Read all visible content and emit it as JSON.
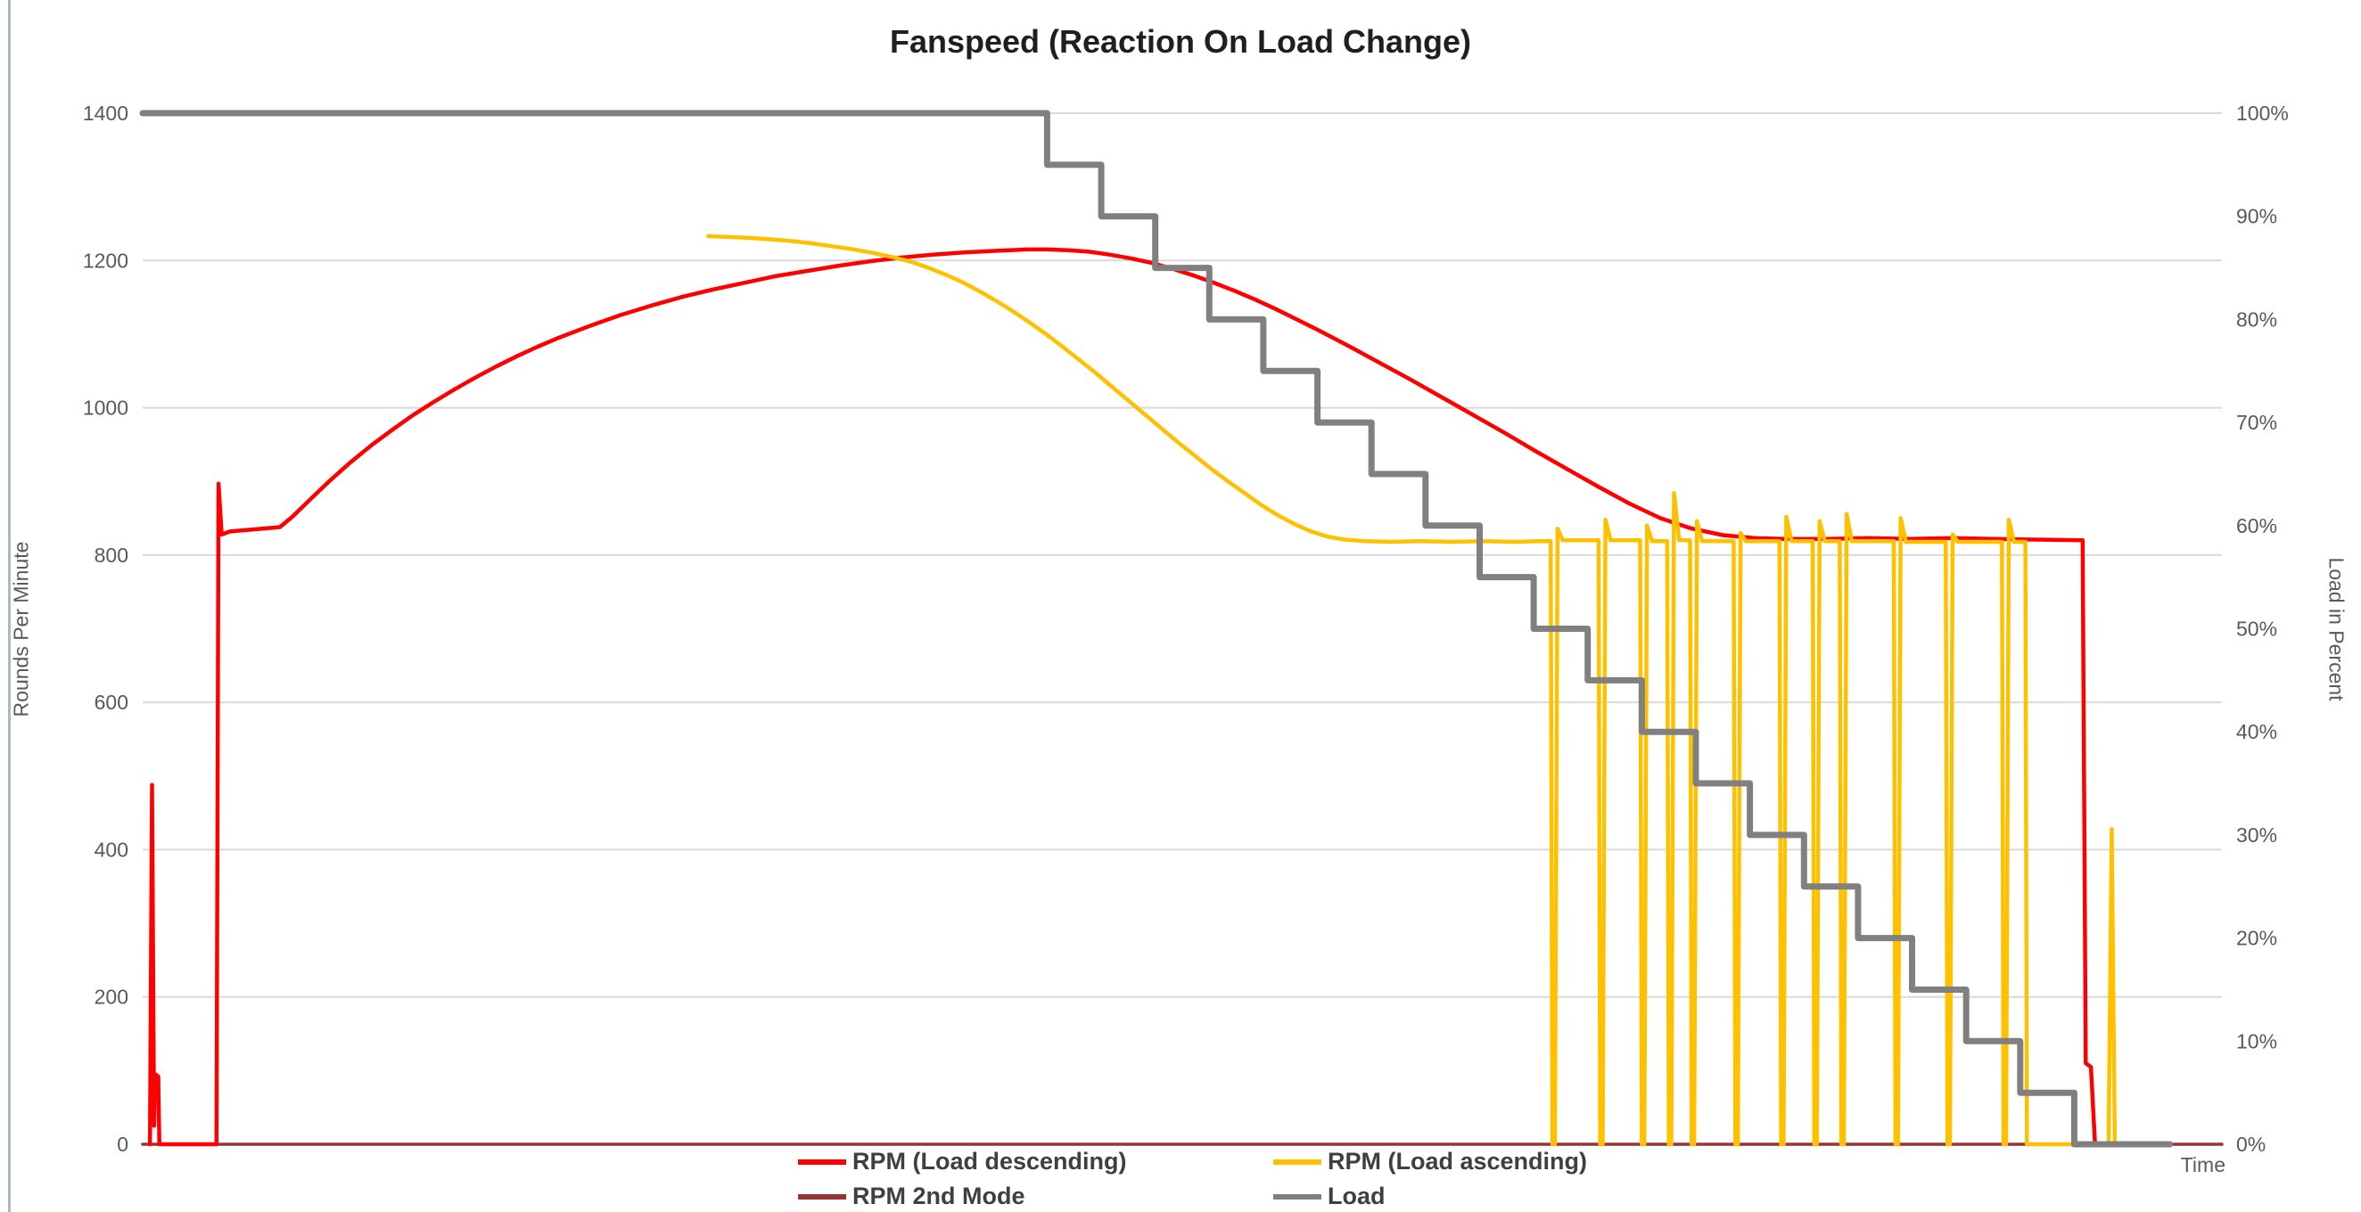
{
  "page": {
    "background": "#FFFFFF"
  },
  "chart_data": {
    "type": "line",
    "title": "Fanspeed (Reaction On Load Change)",
    "xlabel": "Time",
    "ylabel_left": "Rounds Per Minute",
    "ylabel_right": "Load in Percent",
    "ylim_left": [
      0,
      1400
    ],
    "ylim_right": [
      0,
      100
    ],
    "yticks_left": [
      0,
      200,
      400,
      600,
      800,
      1000,
      1200,
      1400
    ],
    "yticks_right_labels": [
      "0%",
      "10%",
      "20%",
      "30%",
      "40%",
      "50%",
      "60%",
      "70%",
      "80%",
      "90%",
      "100%"
    ],
    "grid": "horizontal",
    "grid_color": "#D9D9D9",
    "axis_text_color": "#595959",
    "title_color": "#1f1f1f",
    "legend_position": "bottom",
    "x_units": "percent_of_timeline (x axis shows no numeric ticks, only the label Time)",
    "series": [
      {
        "name": "rpm-2nd-mode",
        "axis": "left",
        "color": "#963634",
        "width": 3.5,
        "points": [
          [
            0,
            0
          ],
          [
            100,
            0
          ]
        ]
      },
      {
        "name": "rpm-load-descending",
        "axis": "left",
        "color": "#FF0000",
        "width": 4.5,
        "points": [
          [
            0.35,
            0
          ],
          [
            0.45,
            488
          ],
          [
            0.55,
            25
          ],
          [
            0.6,
            95
          ],
          [
            0.75,
            92
          ],
          [
            0.8,
            0
          ],
          [
            3.55,
            0
          ],
          [
            3.65,
            897
          ],
          [
            3.8,
            828
          ],
          [
            4.2,
            832
          ],
          [
            5.0,
            834
          ],
          [
            5.8,
            836
          ],
          [
            6.6,
            838
          ],
          [
            7.2,
            852
          ],
          [
            8,
            874
          ],
          [
            9,
            901
          ],
          [
            10,
            926
          ],
          [
            11,
            949
          ],
          [
            12,
            970
          ],
          [
            13,
            990
          ],
          [
            14,
            1008
          ],
          [
            15,
            1025
          ],
          [
            16,
            1041
          ],
          [
            17,
            1056
          ],
          [
            18,
            1070
          ],
          [
            19,
            1083
          ],
          [
            20,
            1095
          ],
          [
            21.5,
            1111
          ],
          [
            23,
            1126
          ],
          [
            24.5,
            1139
          ],
          [
            26,
            1151
          ],
          [
            27.5,
            1161
          ],
          [
            29,
            1170
          ],
          [
            30.5,
            1179
          ],
          [
            32,
            1186
          ],
          [
            33.5,
            1193
          ],
          [
            35,
            1199
          ],
          [
            36.5,
            1204
          ],
          [
            38,
            1208
          ],
          [
            39.5,
            1211
          ],
          [
            41,
            1213
          ],
          [
            42.5,
            1215
          ],
          [
            43.5,
            1215
          ],
          [
            44.5,
            1214
          ],
          [
            45.5,
            1212
          ],
          [
            46.5,
            1208
          ],
          [
            47.5,
            1203
          ],
          [
            48.5,
            1197
          ],
          [
            49.5,
            1189
          ],
          [
            50.5,
            1180
          ],
          [
            51.5,
            1170
          ],
          [
            52.5,
            1159
          ],
          [
            53.5,
            1147
          ],
          [
            54.5,
            1134
          ],
          [
            55.5,
            1120
          ],
          [
            56.5,
            1106
          ],
          [
            58,
            1084
          ],
          [
            59.5,
            1061
          ],
          [
            61,
            1038
          ],
          [
            62.5,
            1014
          ],
          [
            64,
            990
          ],
          [
            65.5,
            966
          ],
          [
            67,
            941
          ],
          [
            68.5,
            917
          ],
          [
            70,
            893
          ],
          [
            71.5,
            870
          ],
          [
            73,
            850
          ],
          [
            74.5,
            836
          ],
          [
            76,
            827
          ],
          [
            77.5,
            823
          ],
          [
            79,
            822
          ],
          [
            81,
            822
          ],
          [
            83,
            823
          ],
          [
            85,
            822
          ],
          [
            87,
            823
          ],
          [
            89,
            822
          ],
          [
            91,
            821
          ],
          [
            93.3,
            820
          ],
          [
            93.45,
            110
          ],
          [
            93.7,
            105
          ],
          [
            93.9,
            0
          ],
          [
            94.6,
            0
          ]
        ]
      },
      {
        "name": "rpm-load-ascending",
        "axis": "left",
        "color": "#FFC000",
        "width": 4.5,
        "points": [
          [
            27.2,
            1233
          ],
          [
            28,
            1232
          ],
          [
            29,
            1231
          ],
          [
            30,
            1229
          ],
          [
            31,
            1227
          ],
          [
            32,
            1224
          ],
          [
            33,
            1220
          ],
          [
            34,
            1216
          ],
          [
            35,
            1211
          ],
          [
            36,
            1205
          ],
          [
            37,
            1198
          ],
          [
            37.8,
            1190
          ],
          [
            38.6,
            1181
          ],
          [
            39.4,
            1171
          ],
          [
            40.2,
            1159
          ],
          [
            41,
            1146
          ],
          [
            41.8,
            1132
          ],
          [
            42.6,
            1117
          ],
          [
            43.4,
            1101
          ],
          [
            44.2,
            1084
          ],
          [
            45,
            1066
          ],
          [
            45.8,
            1048
          ],
          [
            46.6,
            1029
          ],
          [
            47.4,
            1010
          ],
          [
            48.2,
            991
          ],
          [
            49,
            972
          ],
          [
            49.8,
            953
          ],
          [
            50.6,
            935
          ],
          [
            51.4,
            917
          ],
          [
            52.2,
            900
          ],
          [
            53,
            884
          ],
          [
            53.8,
            868
          ],
          [
            54.6,
            854
          ],
          [
            55.4,
            842
          ],
          [
            56.2,
            832
          ],
          [
            57,
            825
          ],
          [
            57.8,
            821
          ],
          [
            58.8,
            819
          ],
          [
            60,
            818
          ],
          [
            61.5,
            819
          ],
          [
            63,
            818
          ],
          [
            64.5,
            819
          ],
          [
            66,
            818
          ],
          [
            67.2,
            819
          ],
          [
            67.72,
            819
          ],
          [
            67.8,
            0
          ],
          [
            67.92,
            0
          ],
          [
            68.05,
            836
          ],
          [
            68.3,
            820
          ],
          [
            70.02,
            820
          ],
          [
            70.1,
            0
          ],
          [
            70.22,
            0
          ],
          [
            70.35,
            848
          ],
          [
            70.6,
            820
          ],
          [
            72.02,
            820
          ],
          [
            72.1,
            0
          ],
          [
            72.22,
            0
          ],
          [
            72.35,
            840
          ],
          [
            72.6,
            819
          ],
          [
            73.32,
            819
          ],
          [
            73.4,
            0
          ],
          [
            73.52,
            0
          ],
          [
            73.65,
            884
          ],
          [
            73.9,
            820
          ],
          [
            74.42,
            820
          ],
          [
            74.5,
            0
          ],
          [
            74.62,
            0
          ],
          [
            74.75,
            846
          ],
          [
            75.0,
            819
          ],
          [
            76.52,
            819
          ],
          [
            76.6,
            0
          ],
          [
            76.72,
            0
          ],
          [
            76.85,
            830
          ],
          [
            77.1,
            819
          ],
          [
            78.72,
            819
          ],
          [
            78.8,
            0
          ],
          [
            78.92,
            0
          ],
          [
            79.05,
            852
          ],
          [
            79.3,
            819
          ],
          [
            80.32,
            819
          ],
          [
            80.4,
            0
          ],
          [
            80.52,
            0
          ],
          [
            80.65,
            846
          ],
          [
            80.9,
            819
          ],
          [
            81.62,
            819
          ],
          [
            81.7,
            0
          ],
          [
            81.82,
            0
          ],
          [
            81.95,
            856
          ],
          [
            82.2,
            819
          ],
          [
            84.22,
            819
          ],
          [
            84.3,
            0
          ],
          [
            84.42,
            0
          ],
          [
            84.55,
            850
          ],
          [
            84.8,
            818
          ],
          [
            86.72,
            818
          ],
          [
            86.8,
            0
          ],
          [
            86.92,
            0
          ],
          [
            87.05,
            828
          ],
          [
            87.3,
            818
          ],
          [
            89.42,
            818
          ],
          [
            89.5,
            0
          ],
          [
            89.62,
            0
          ],
          [
            89.75,
            848
          ],
          [
            90.0,
            818
          ],
          [
            90.55,
            818
          ],
          [
            90.62,
            0
          ],
          [
            94.55,
            0
          ],
          [
            94.7,
            428
          ],
          [
            94.85,
            0
          ],
          [
            95.5,
            0
          ]
        ]
      },
      {
        "name": "load",
        "axis": "right",
        "color": "#808080",
        "width": 7,
        "points": [
          [
            0,
            100
          ],
          [
            43.5,
            100
          ],
          [
            43.5,
            95
          ],
          [
            46.1,
            95
          ],
          [
            46.1,
            90
          ],
          [
            48.7,
            90
          ],
          [
            48.7,
            85
          ],
          [
            51.3,
            85
          ],
          [
            51.3,
            80
          ],
          [
            53.9,
            80
          ],
          [
            53.9,
            75
          ],
          [
            56.5,
            75
          ],
          [
            56.5,
            70
          ],
          [
            59.1,
            70
          ],
          [
            59.1,
            65
          ],
          [
            61.7,
            65
          ],
          [
            61.7,
            60
          ],
          [
            64.3,
            60
          ],
          [
            64.3,
            55
          ],
          [
            66.9,
            55
          ],
          [
            66.9,
            50
          ],
          [
            69.5,
            50
          ],
          [
            69.5,
            45
          ],
          [
            72.1,
            45
          ],
          [
            72.1,
            40
          ],
          [
            74.7,
            40
          ],
          [
            74.7,
            35
          ],
          [
            77.3,
            35
          ],
          [
            77.3,
            30
          ],
          [
            79.9,
            30
          ],
          [
            79.9,
            25
          ],
          [
            82.5,
            25
          ],
          [
            82.5,
            20
          ],
          [
            85.1,
            20
          ],
          [
            85.1,
            15
          ],
          [
            87.7,
            15
          ],
          [
            87.7,
            10
          ],
          [
            90.3,
            10
          ],
          [
            90.3,
            5
          ],
          [
            92.9,
            5
          ],
          [
            92.9,
            0
          ],
          [
            97.5,
            0
          ]
        ]
      }
    ],
    "legend": [
      {
        "label": "RPM (Load descending)",
        "color": "#FF0000"
      },
      {
        "label": "RPM (Load ascending)",
        "color": "#FFC000"
      },
      {
        "label": "RPM 2nd Mode",
        "color": "#963634"
      },
      {
        "label": "Load",
        "color": "#808080"
      }
    ]
  }
}
